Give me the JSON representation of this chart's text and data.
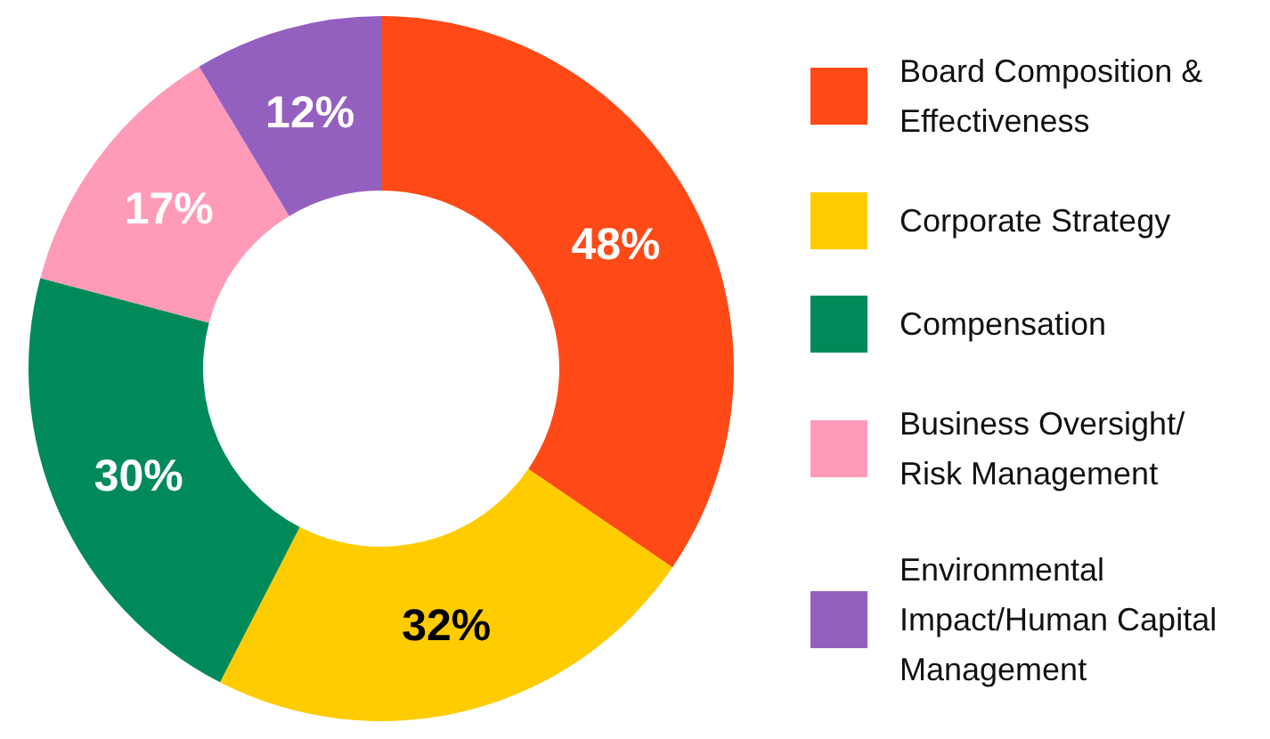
{
  "chart_data": {
    "type": "donut",
    "categories": [
      "Board Composition & Effectiveness",
      "Corporate Strategy",
      "Compensation",
      "Business Oversight/ Risk Management",
      "Environmental Impact/Human Capital Management"
    ],
    "values": [
      48,
      32,
      30,
      17,
      12
    ],
    "colors": [
      "#ff4a17",
      "#ffcc00",
      "#008a5a",
      "#ff9bb8",
      "#9460c0"
    ],
    "value_labels": [
      "48%",
      "32%",
      "30%",
      "17%",
      "12%"
    ],
    "legend": "right"
  }
}
